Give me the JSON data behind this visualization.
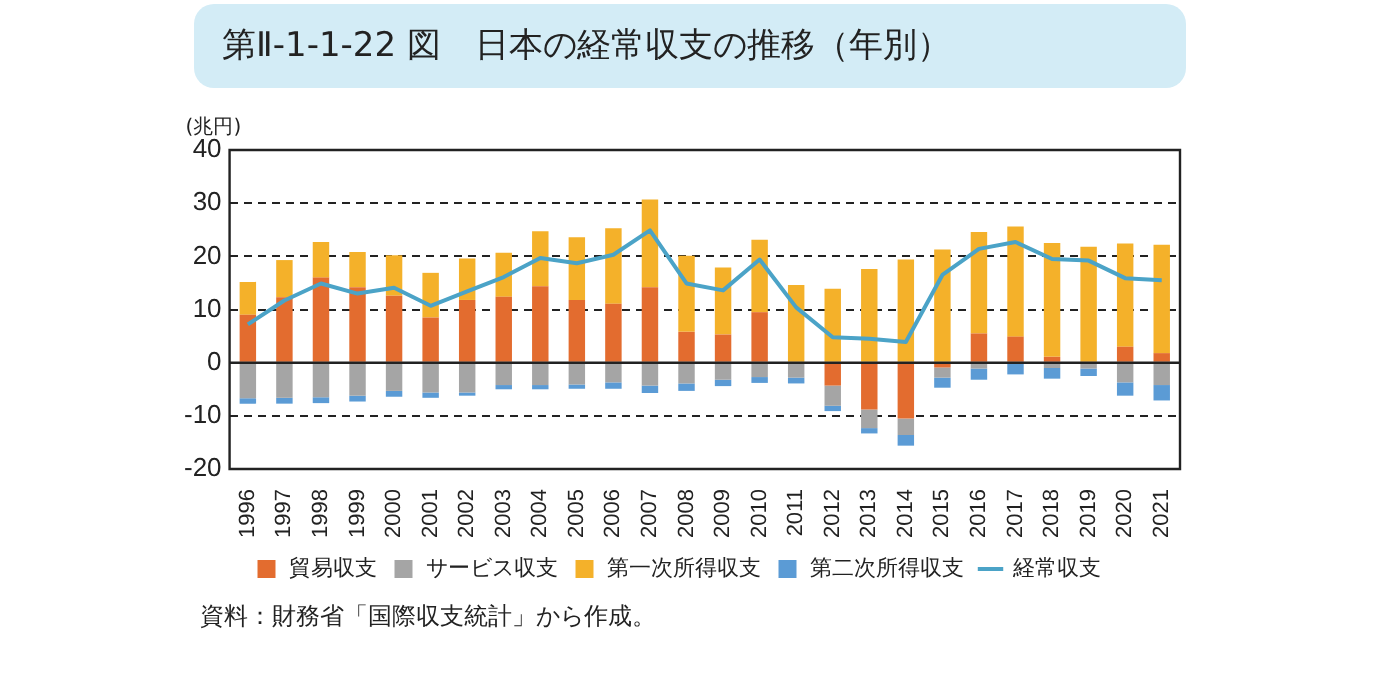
{
  "chart_data": {
    "type": "bar",
    "title": "第Ⅱ-1-1-22 図　日本の経常収支の推移（年別）",
    "ylabel": "(兆円)",
    "categories": [
      "1996",
      "1997",
      "1998",
      "1999",
      "2000",
      "2001",
      "2002",
      "2003",
      "2004",
      "2005",
      "2006",
      "2007",
      "2008",
      "2009",
      "2010",
      "2011",
      "2012",
      "2013",
      "2014",
      "2015",
      "2016",
      "2017",
      "2018",
      "2019",
      "2020",
      "2021"
    ],
    "series": [
      {
        "name": "貿易収支",
        "color": "#e36c2f",
        "values": [
          9.0,
          12.3,
          16.0,
          14.2,
          12.6,
          8.5,
          11.8,
          12.4,
          14.4,
          11.8,
          11.1,
          14.2,
          5.8,
          5.3,
          9.5,
          null,
          -4.3,
          -8.8,
          -10.5,
          -0.9,
          5.5,
          4.9,
          1.1,
          0.2,
          3.0,
          1.8
        ]
      },
      {
        "name": "サービス収支",
        "color": "#a5a5a5",
        "values": [
          -6.7,
          -6.6,
          -6.5,
          -6.2,
          -5.3,
          -5.6,
          -5.6,
          -4.2,
          -4.2,
          -4.1,
          -3.7,
          -4.3,
          -3.9,
          -3.2,
          -2.7,
          -2.8,
          -3.8,
          -3.5,
          -3.1,
          -1.9,
          -1.1,
          null,
          -1.0,
          -1.1,
          -3.7,
          -4.2
        ]
      },
      {
        "name": "第一次所得収支",
        "color": "#f4b12a",
        "values": [
          6.2,
          7.0,
          6.7,
          6.6,
          7.6,
          8.4,
          7.8,
          8.3,
          10.3,
          11.8,
          14.2,
          16.5,
          14.3,
          12.6,
          13.6,
          14.6,
          13.9,
          17.6,
          19.4,
          21.3,
          19.1,
          20.7,
          21.4,
          21.6,
          19.4,
          20.4
        ]
      },
      {
        "name": "第二次所得収支",
        "color": "#5b9bd5",
        "values": [
          -1.0,
          -1.1,
          -1.1,
          -1.1,
          -1.1,
          -1.0,
          -0.6,
          -0.8,
          -0.8,
          -0.8,
          -1.2,
          -1.4,
          -1.4,
          -1.2,
          -1.1,
          -1.1,
          -1.0,
          -1.0,
          -2.0,
          -1.9,
          -2.1,
          -2.2,
          -2.0,
          -1.4,
          -2.5,
          -2.9
        ]
      },
      {
        "name": "経常収支",
        "type": "line",
        "color": "#4ba3c7",
        "values": [
          7.2,
          11.7,
          14.9,
          13.0,
          14.1,
          10.7,
          13.4,
          16.1,
          19.7,
          18.7,
          20.3,
          24.9,
          14.9,
          13.6,
          19.4,
          10.4,
          4.8,
          4.5,
          3.9,
          16.5,
          21.4,
          22.7,
          19.5,
          19.2,
          15.9,
          15.5
        ]
      }
    ],
    "stacked": true,
    "ylim": [
      -20,
      40
    ],
    "yticks": [
      -20,
      -10,
      0,
      10,
      20,
      30,
      40
    ],
    "grid": "y",
    "legend": "bottom",
    "marker": "none",
    "annotations": [
      "資料：財務省「国際収支統計」から作成。"
    ]
  }
}
